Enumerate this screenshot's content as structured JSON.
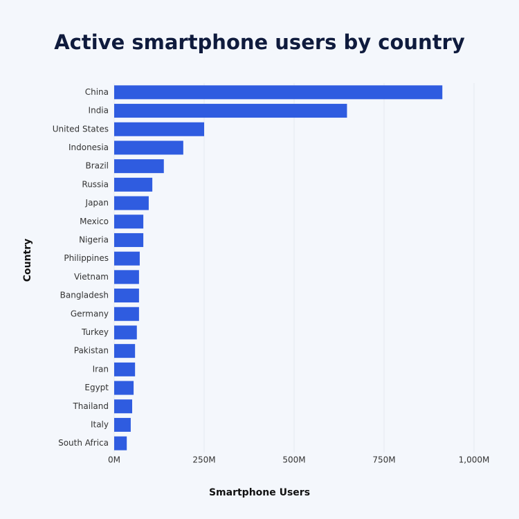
{
  "chart_data": {
    "type": "bar",
    "orientation": "horizontal",
    "title": "Active smartphone users by country",
    "x_label": "Smartphone Users",
    "y_label": "Country",
    "categories": [
      "China",
      "India",
      "United States",
      "Indonesia",
      "Brazil",
      "Russia",
      "Japan",
      "Mexico",
      "Nigeria",
      "Philippines",
      "Vietnam",
      "Bangladesh",
      "Germany",
      "Turkey",
      "Pakistan",
      "Iran",
      "Egypt",
      "Thailand",
      "Italy",
      "South Africa"
    ],
    "values": [
      912,
      647,
      250,
      192,
      138,
      106,
      96,
      81,
      81,
      71,
      69,
      69,
      69,
      63,
      58,
      58,
      54,
      50,
      46,
      35
    ],
    "color": "#2f5ce0",
    "xlim": [
      0,
      1000
    ],
    "xticks": [
      {
        "value": 0,
        "label": "0M"
      },
      {
        "value": 250,
        "label": "250M"
      },
      {
        "value": 500,
        "label": "500M"
      },
      {
        "value": 750,
        "label": "750M"
      },
      {
        "value": 1000,
        "label": "1,000M"
      }
    ],
    "grid": true
  }
}
